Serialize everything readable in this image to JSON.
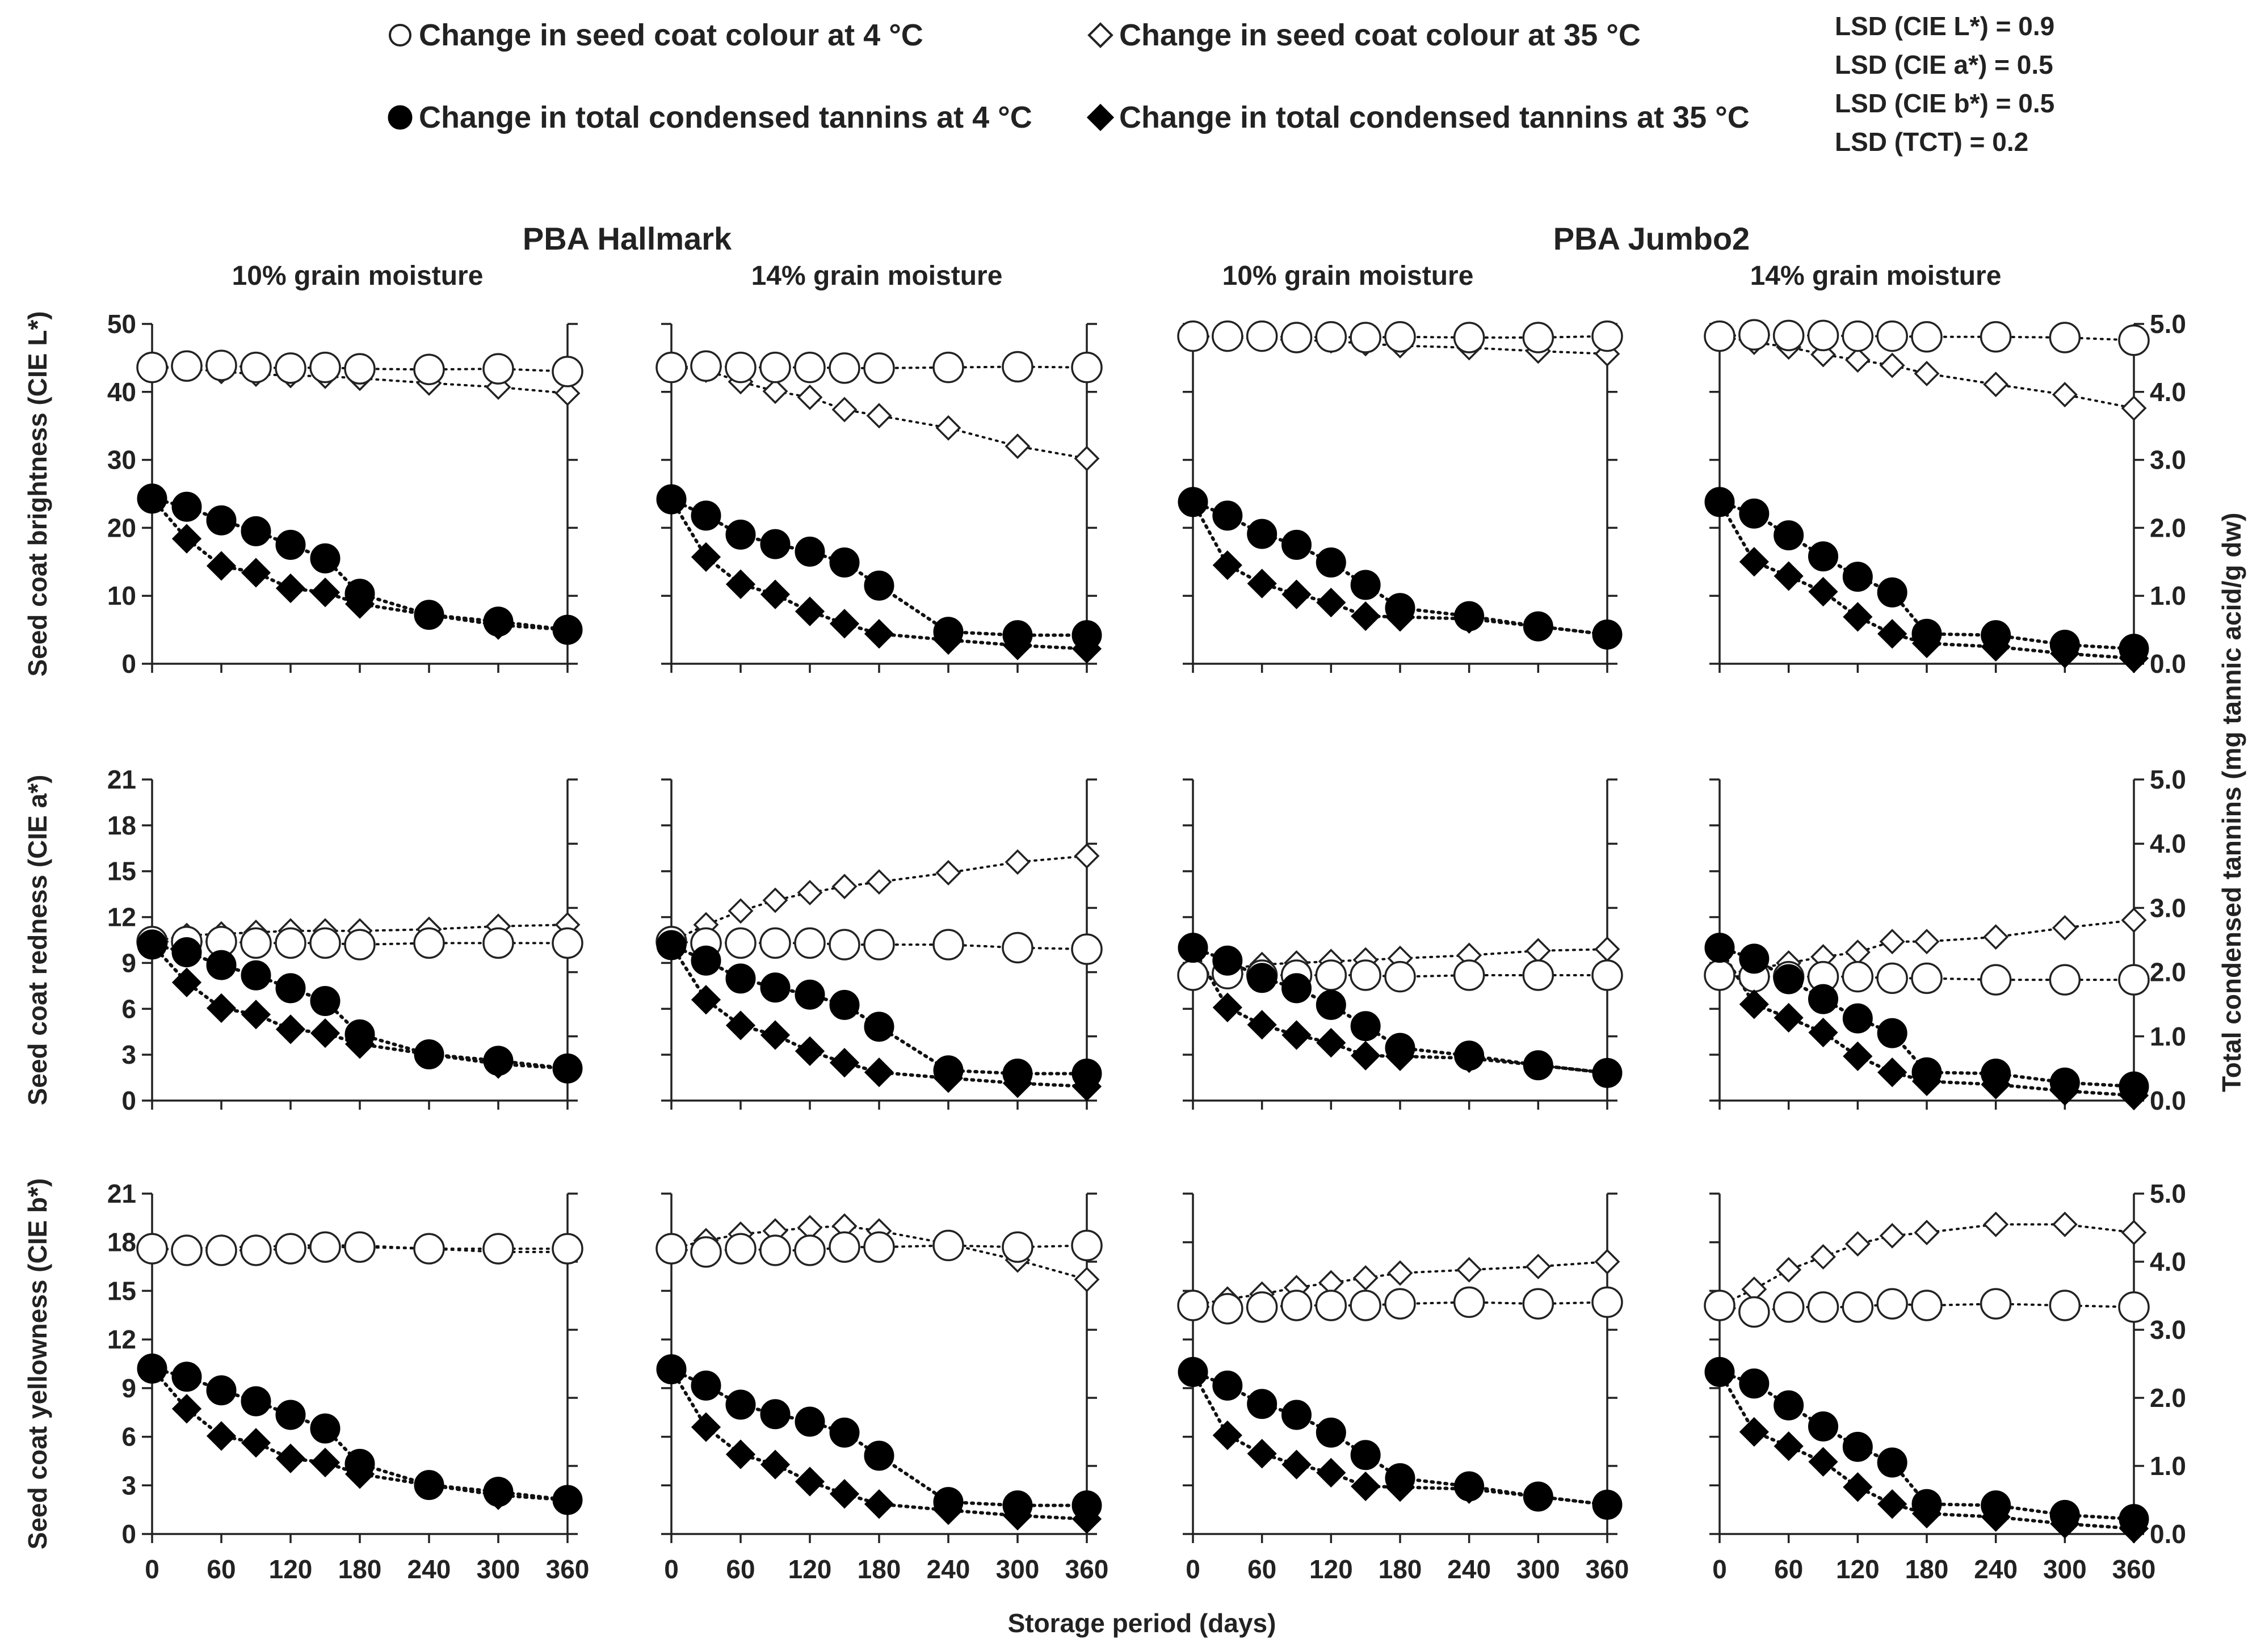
{
  "chart_data": {
    "type": "scatter",
    "legend": [
      {
        "key": "colour_4",
        "label": "Change in seed coat colour at 4 °C",
        "marker": "circle-open"
      },
      {
        "key": "colour_35",
        "label": "Change in seed coat colour at 35 °C",
        "marker": "diamond-open"
      },
      {
        "key": "tct_4",
        "label": "Change in total condensed tannins at 4 °C",
        "marker": "circle-filled"
      },
      {
        "key": "tct_35",
        "label": "Change in total condensed tannins at 35 °C",
        "marker": "diamond-filled"
      }
    ],
    "lsd": [
      "LSD (CIE L*) = 0.9",
      "LSD (CIE a*) = 0.5",
      "LSD (CIE b*) = 0.5",
      "LSD (TCT) = 0.2"
    ],
    "groups": [
      "PBA Hallmark",
      "PBA Jumbo2"
    ],
    "columns": [
      "10% grain moisture",
      "14% grain moisture",
      "10% grain moisture",
      "14% grain moisture"
    ],
    "x": [
      0,
      30,
      60,
      90,
      120,
      150,
      180,
      240,
      300,
      360
    ],
    "xticks": [
      0,
      60,
      120,
      180,
      240,
      300,
      360
    ],
    "xlim": [
      0,
      360
    ],
    "xlabel": "Storage period (days)",
    "right_ylabel": "Total condensed tannins (mg tannic acid/g dw)",
    "right_ylim": [
      0,
      5
    ],
    "right_yticks": [
      "0.0",
      "1.0",
      "2.0",
      "3.0",
      "4.0",
      "5.0"
    ],
    "tct_4": [
      [
        2.43,
        2.31,
        2.11,
        1.95,
        1.75,
        1.55,
        1.03,
        0.72,
        0.62,
        0.5
      ],
      [
        2.42,
        2.18,
        1.9,
        1.76,
        1.65,
        1.49,
        1.15,
        0.47,
        0.42,
        0.42
      ],
      [
        2.38,
        2.18,
        1.91,
        1.75,
        1.49,
        1.16,
        0.82,
        0.7,
        0.55,
        0.43
      ],
      [
        2.38,
        2.21,
        1.89,
        1.58,
        1.28,
        1.05,
        0.44,
        0.42,
        0.28,
        0.22
      ]
    ],
    "tct_35": [
      [
        2.43,
        1.84,
        1.44,
        1.34,
        1.11,
        1.05,
        0.88,
        0.72,
        0.57,
        0.5
      ],
      [
        2.42,
        1.57,
        1.17,
        1.02,
        0.77,
        0.59,
        0.44,
        0.35,
        0.27,
        0.22
      ],
      [
        2.38,
        1.45,
        1.18,
        1.02,
        0.9,
        0.7,
        0.69,
        0.66,
        0.55,
        0.43
      ],
      [
        2.38,
        1.5,
        1.29,
        1.06,
        0.69,
        0.44,
        0.3,
        0.25,
        0.15,
        0.08
      ]
    ],
    "rows": [
      {
        "ylabel": "Seed coat brightness (CIE L*)",
        "ylim": [
          0,
          50
        ],
        "yticks": [
          0,
          10,
          20,
          30,
          40,
          50
        ],
        "colour_4": [
          [
            43.6,
            43.8,
            43.9,
            43.6,
            43.5,
            43.6,
            43.4,
            43.3,
            43.4,
            43.0
          ],
          [
            43.6,
            43.8,
            43.6,
            43.6,
            43.6,
            43.5,
            43.5,
            43.6,
            43.7,
            43.6
          ],
          [
            48.2,
            48.2,
            48.2,
            48.0,
            48.1,
            48.0,
            48.1,
            48.0,
            48.0,
            48.2
          ],
          [
            48.2,
            48.4,
            48.3,
            48.3,
            48.2,
            48.2,
            48.1,
            48.1,
            48.0,
            47.6
          ]
        ],
        "colour_35": [
          [
            43.6,
            43.4,
            43.0,
            42.6,
            42.4,
            42.3,
            42.0,
            41.3,
            40.7,
            39.8
          ],
          [
            43.6,
            43.2,
            41.5,
            40.1,
            39.2,
            37.4,
            36.5,
            34.7,
            32.0,
            30.2
          ],
          [
            48.2,
            48.0,
            47.8,
            47.6,
            47.5,
            47.1,
            46.8,
            46.5,
            46.0,
            45.6
          ],
          [
            48.2,
            47.3,
            46.6,
            45.5,
            44.7,
            43.9,
            42.7,
            41.1,
            39.6,
            37.6
          ]
        ]
      },
      {
        "ylabel": "Seed coat redness (CIE a*)",
        "ylim": [
          0,
          21
        ],
        "yticks": [
          0,
          3,
          6,
          9,
          12,
          15,
          18,
          21
        ],
        "colour_4": [
          [
            10.4,
            10.4,
            10.4,
            10.3,
            10.3,
            10.3,
            10.2,
            10.3,
            10.3,
            10.3
          ],
          [
            10.4,
            10.3,
            10.3,
            10.3,
            10.3,
            10.2,
            10.2,
            10.2,
            10.0,
            9.9
          ],
          [
            8.2,
            8.3,
            8.2,
            8.2,
            8.2,
            8.2,
            8.1,
            8.2,
            8.2,
            8.2
          ],
          [
            8.2,
            8.1,
            8.1,
            8.1,
            8.1,
            8.0,
            8.0,
            7.9,
            7.9,
            7.9
          ]
        ],
        "colour_35": [
          [
            10.4,
            10.8,
            10.9,
            11.0,
            11.1,
            11.1,
            11.1,
            11.2,
            11.4,
            11.5
          ],
          [
            10.4,
            11.5,
            12.4,
            13.1,
            13.6,
            14.0,
            14.3,
            14.9,
            15.6,
            16.0
          ],
          [
            8.2,
            8.6,
            8.9,
            9.0,
            9.1,
            9.2,
            9.3,
            9.5,
            9.8,
            9.9
          ],
          [
            8.2,
            8.6,
            9.0,
            9.4,
            9.7,
            10.4,
            10.4,
            10.7,
            11.3,
            11.8
          ]
        ]
      },
      {
        "ylabel": "Seed coat yellowness (CIE b*)",
        "ylim": [
          0,
          21
        ],
        "yticks": [
          0,
          3,
          6,
          9,
          12,
          15,
          18,
          21
        ],
        "colour_4": [
          [
            17.6,
            17.5,
            17.5,
            17.5,
            17.6,
            17.7,
            17.7,
            17.6,
            17.6,
            17.6
          ],
          [
            17.6,
            17.4,
            17.6,
            17.5,
            17.5,
            17.7,
            17.7,
            17.8,
            17.7,
            17.8
          ],
          [
            14.1,
            13.9,
            14.0,
            14.1,
            14.1,
            14.1,
            14.2,
            14.3,
            14.2,
            14.3
          ],
          [
            14.1,
            13.7,
            14.0,
            14.0,
            14.0,
            14.2,
            14.1,
            14.2,
            14.1,
            14.0
          ]
        ],
        "colour_35": [
          [
            17.6,
            17.6,
            17.7,
            17.7,
            17.8,
            17.8,
            17.8,
            17.6,
            17.4,
            17.4
          ],
          [
            17.6,
            18.1,
            18.5,
            18.7,
            18.9,
            19.0,
            18.7,
            17.9,
            16.9,
            15.7
          ],
          [
            14.1,
            14.5,
            14.8,
            15.2,
            15.5,
            15.8,
            16.1,
            16.3,
            16.5,
            16.8
          ],
          [
            14.1,
            15.1,
            16.3,
            17.1,
            17.9,
            18.4,
            18.6,
            19.1,
            19.1,
            18.6
          ]
        ]
      }
    ]
  }
}
